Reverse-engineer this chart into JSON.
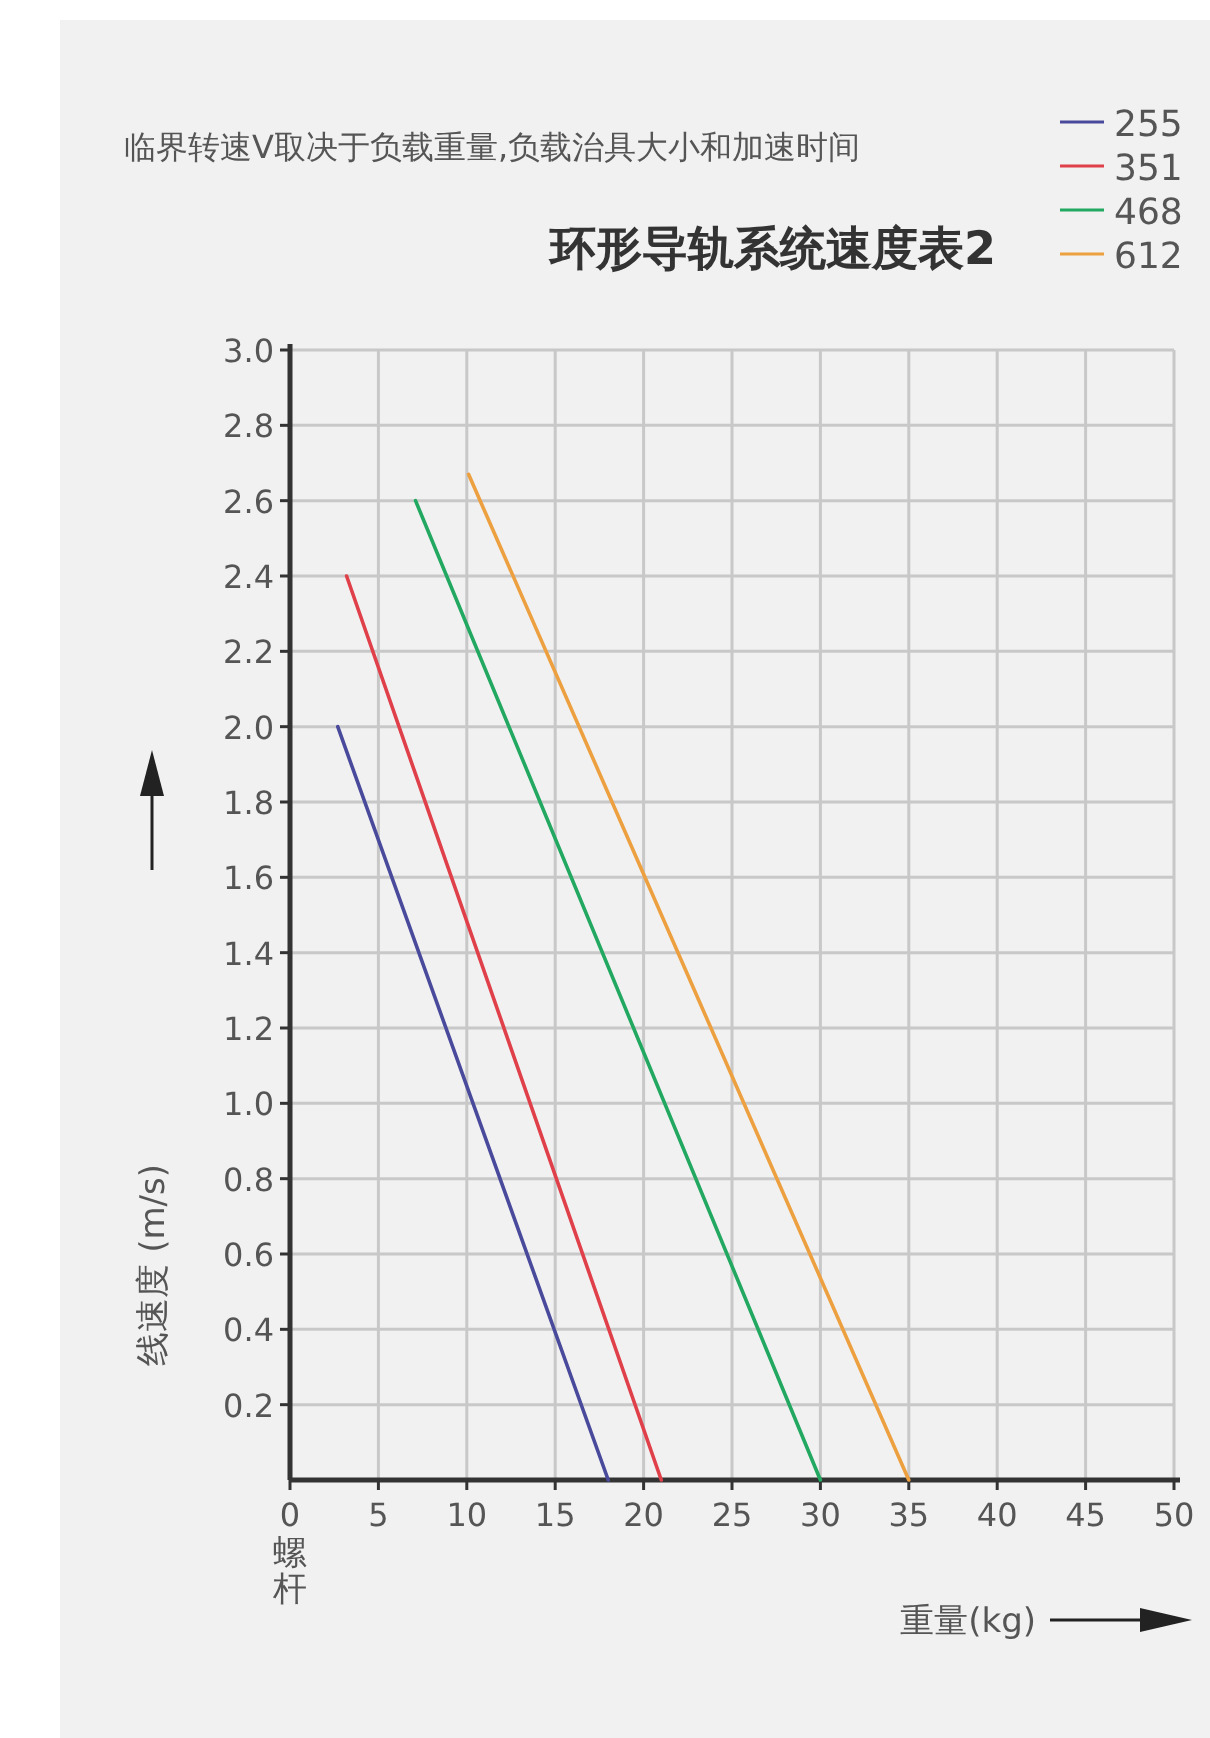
{
  "chart_data": {
    "type": "line",
    "title": "环形导轨系统速度表2",
    "subtitle": "临界转速V取决于负载重量,负载治具大小和加速时间",
    "xlabel": "重量(kg)",
    "ylabel": "线速度 (m/s)",
    "annotations": [
      "螺杆"
    ],
    "xlim": [
      0,
      50
    ],
    "xticks": [
      0,
      5,
      10,
      15,
      20,
      25,
      30,
      35,
      40,
      45,
      50
    ],
    "ylim": [
      0,
      3.0
    ],
    "yticks": [
      {
        "value": 0.2,
        "label": "0.2"
      },
      {
        "value": 0.4,
        "label": "0.4"
      },
      {
        "value": 0.6,
        "label": "0.6"
      },
      {
        "value": 0.8,
        "label": "0.8"
      },
      {
        "value": 1.0,
        "label": "1.0"
      },
      {
        "value": 1.2,
        "label": "1.2"
      },
      {
        "value": 1.4,
        "label": "1.4"
      },
      {
        "value": 1.6,
        "label": "1.6"
      },
      {
        "value": 1.8,
        "label": "1.8"
      },
      {
        "value": 2.0,
        "label": "2.0"
      },
      {
        "value": 2.2,
        "label": "2.2"
      },
      {
        "value": 2.4,
        "label": "2.4"
      },
      {
        "value": 2.6,
        "label": "2.6"
      },
      {
        "value": 2.8,
        "label": "2.8"
      },
      {
        "value": 3.0,
        "label": "3.0"
      }
    ],
    "grid": true,
    "legend": "top right",
    "line_style": "solid",
    "series": [
      {
        "name": "255",
        "color": "#4a4a9c",
        "x": [
          2.7,
          18
        ],
        "values": [
          2.0,
          0
        ]
      },
      {
        "name": "351",
        "color": "#e0404a",
        "x": [
          3.2,
          21
        ],
        "values": [
          2.4,
          0
        ]
      },
      {
        "name": "468",
        "color": "#22a860",
        "x": [
          7.1,
          30
        ],
        "values": [
          2.6,
          0
        ]
      },
      {
        "name": "612",
        "color": "#eda040",
        "x": [
          10.1,
          35
        ],
        "values": [
          2.67,
          0
        ]
      }
    ]
  }
}
